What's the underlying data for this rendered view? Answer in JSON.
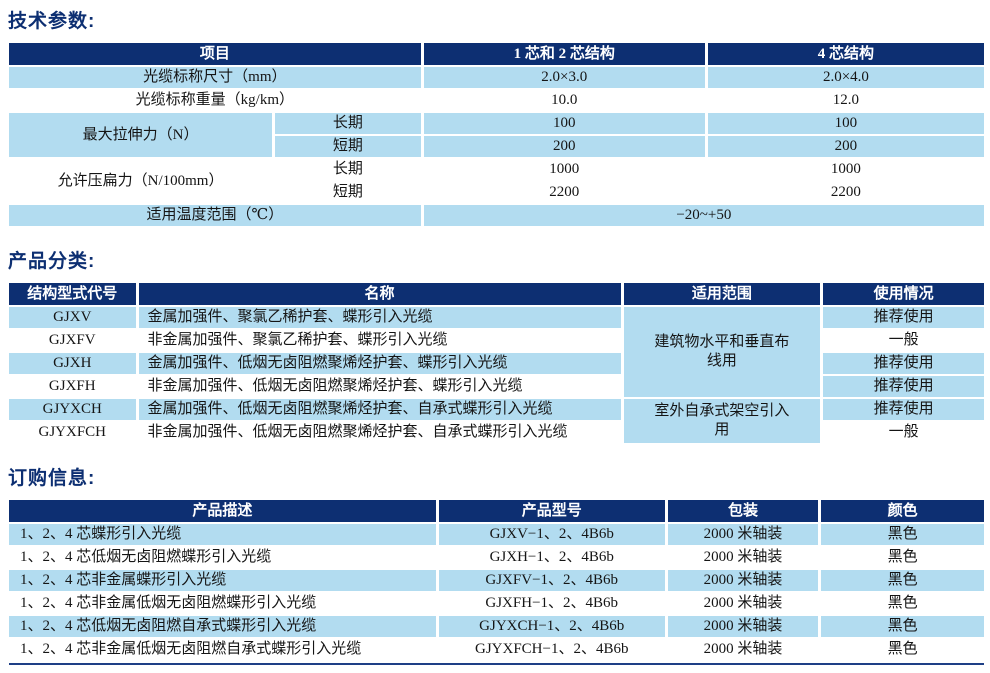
{
  "colors": {
    "header_bg": "#0d2f72",
    "row_blue": "#b2dcf0",
    "title_color": "#0d2f72",
    "rule_color": "#1e3f86"
  },
  "tech_params": {
    "title": "技术参数:",
    "headers": {
      "item": "项目",
      "cores12": "1 芯和 2 芯结构",
      "cores4": "4 芯结构"
    },
    "rows": {
      "size": {
        "label": "光缆标称尺寸（mm）",
        "v12": "2.0×3.0",
        "v4": "2.0×4.0"
      },
      "weight": {
        "label": "光缆标称重量（kg/km）",
        "v12": "10.0",
        "v4": "12.0"
      },
      "tension": {
        "label": "最大拉伸力（N）",
        "long_label": "长期",
        "short_label": "短期",
        "long_v12": "100",
        "long_v4": "100",
        "short_v12": "200",
        "short_v4": "200"
      },
      "crush": {
        "label": "允许压扁力（N/100mm）",
        "long_label": "长期",
        "short_label": "短期",
        "long_v12": "1000",
        "long_v4": "1000",
        "short_v12": "2200",
        "short_v4": "2200"
      },
      "temperature": {
        "label": "适用温度范围（℃）",
        "value": "−20~+50"
      }
    }
  },
  "classification": {
    "title": "产品分类:",
    "headers": {
      "code": "结构型式代号",
      "name": "名称",
      "scope": "适用范围",
      "usage": "使用情况"
    },
    "scopes": {
      "indoor": "建筑物水平和垂直布线用",
      "outdoor": "室外自承式架空引入用"
    },
    "rows": [
      {
        "code": "GJXV",
        "name": "金属加强件、聚氯乙稀护套、蝶形引入光缆",
        "usage": "推荐使用"
      },
      {
        "code": "GJXFV",
        "name": "非金属加强件、聚氯乙稀护套、蝶形引入光缆",
        "usage": "一般"
      },
      {
        "code": "GJXH",
        "name": "金属加强件、低烟无卤阻燃聚烯烃护套、蝶形引入光缆",
        "usage": "推荐使用"
      },
      {
        "code": "GJXFH",
        "name": "非金属加强件、低烟无卤阻燃聚烯烃护套、蝶形引入光缆",
        "usage": "推荐使用"
      },
      {
        "code": "GJYXCH",
        "name": "金属加强件、低烟无卤阻燃聚烯烃护套、自承式蝶形引入光缆",
        "usage": "推荐使用"
      },
      {
        "code": "GJYXFCH",
        "name": "非金属加强件、低烟无卤阻燃聚烯烃护套、自承式蝶形引入光缆",
        "usage": "一般"
      }
    ]
  },
  "ordering": {
    "title": "订购信息:",
    "headers": {
      "desc": "产品描述",
      "model": "产品型号",
      "packing": "包装",
      "color": "颜色"
    },
    "rows": [
      {
        "desc": "1、2、4 芯蝶形引入光缆",
        "model": "GJXV−1、2、4B6b",
        "packing": "2000 米轴装",
        "color": "黑色"
      },
      {
        "desc": "1、2、4 芯低烟无卤阻燃蝶形引入光缆",
        "model": "GJXH−1、2、4B6b",
        "packing": "2000 米轴装",
        "color": "黑色"
      },
      {
        "desc": "1、2、4 芯非金属蝶形引入光缆",
        "model": "GJXFV−1、2、4B6b",
        "packing": "2000 米轴装",
        "color": "黑色"
      },
      {
        "desc": "1、2、4 芯非金属低烟无卤阻燃蝶形引入光缆",
        "model": "GJXFH−1、2、4B6b",
        "packing": "2000 米轴装",
        "color": "黑色"
      },
      {
        "desc": "1、2、4 芯低烟无卤阻燃自承式蝶形引入光缆",
        "model": "GJYXCH−1、2、4B6b",
        "packing": "2000 米轴装",
        "color": "黑色"
      },
      {
        "desc": "1、2、4 芯非金属低烟无卤阻燃自承式蝶形引入光缆",
        "model": "GJYXFCH−1、2、4B6b",
        "packing": "2000 米轴装",
        "color": "黑色"
      }
    ]
  }
}
